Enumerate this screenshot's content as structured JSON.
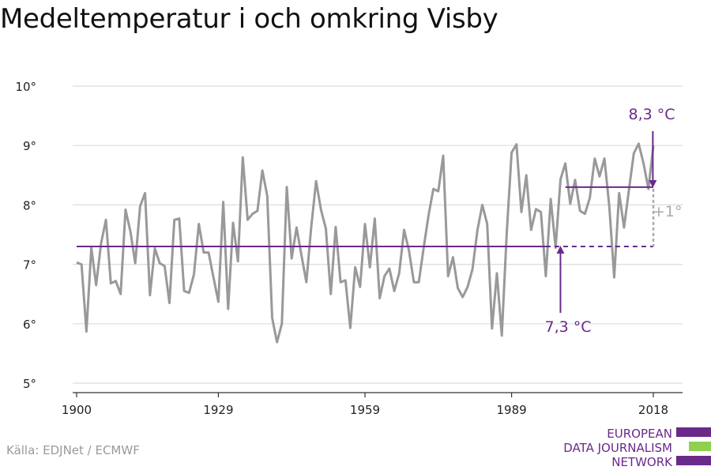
{
  "title": "Medeltemperatur i och omkring Visby",
  "source": "Källa: EDJNet / ECMWF",
  "logo": {
    "lines": [
      "EUROPEAN",
      "DATA JOURNALISM",
      "NETWORK"
    ],
    "colors": [
      "#6a2a8a",
      "#8fd14f",
      "#6a2a8a"
    ]
  },
  "colors": {
    "series": "#999999",
    "accent": "#6a2a8a",
    "increase": "#aaaaaa",
    "grid": "#dddddd",
    "axis": "#333333"
  },
  "chart_data": {
    "type": "line",
    "ylim": [
      5,
      10
    ],
    "xlim": [
      1900,
      2018
    ],
    "y_ticks": [
      5,
      6,
      7,
      8,
      9,
      10
    ],
    "y_tick_labels": [
      "5°",
      "6°",
      "7°",
      "8°",
      "9°",
      "10°"
    ],
    "x_ticks": [
      1900,
      1929,
      1959,
      1989,
      2018
    ],
    "x_tick_labels": [
      "1900",
      "1929",
      "1959",
      "1989",
      "2018"
    ],
    "grid": true,
    "series": [
      {
        "x": [
          1900,
          1901,
          1902,
          1903,
          1904,
          1905,
          1906,
          1907,
          1908,
          1909,
          1910,
          1911,
          1912,
          1913,
          1914,
          1915,
          1916,
          1917,
          1918,
          1919,
          1920,
          1921,
          1922,
          1923,
          1924,
          1925,
          1926,
          1927,
          1928,
          1929,
          1930,
          1931,
          1932,
          1933,
          1934,
          1935,
          1936,
          1937,
          1938,
          1939,
          1940,
          1941,
          1942,
          1943,
          1944,
          1945,
          1946,
          1947,
          1948,
          1949,
          1950,
          1951,
          1952,
          1953,
          1954,
          1955,
          1956,
          1957,
          1958,
          1959,
          1960,
          1961,
          1962,
          1963,
          1964,
          1965,
          1966,
          1967,
          1968,
          1969,
          1970,
          1971,
          1972,
          1973,
          1974,
          1975,
          1976,
          1977,
          1978,
          1979,
          1980,
          1981,
          1982,
          1983,
          1984,
          1985,
          1986,
          1987,
          1988,
          1989,
          1990,
          1991,
          1992,
          1993,
          1994,
          1995,
          1996,
          1997,
          1998,
          1999,
          2000,
          2001,
          2002,
          2003,
          2004,
          2005,
          2006,
          2007,
          2008,
          2009,
          2010,
          2011,
          2012,
          2013,
          2014,
          2015,
          2016,
          2017,
          2018
        ],
        "values": [
          7.03,
          7.0,
          5.87,
          7.28,
          6.65,
          7.35,
          7.75,
          6.68,
          6.72,
          6.5,
          7.92,
          7.55,
          7.02,
          7.98,
          8.2,
          6.48,
          7.27,
          7.02,
          6.97,
          6.35,
          7.75,
          7.77,
          6.55,
          6.52,
          6.83,
          7.68,
          7.2,
          7.2,
          6.78,
          6.37,
          8.05,
          6.25,
          7.7,
          7.05,
          8.8,
          7.75,
          7.85,
          7.9,
          8.58,
          8.15,
          6.1,
          5.69,
          6.0,
          8.3,
          7.1,
          7.62,
          7.15,
          6.7,
          7.62,
          8.4,
          7.92,
          7.6,
          6.5,
          7.63,
          6.7,
          6.73,
          5.93,
          6.95,
          6.62,
          7.68,
          6.95,
          7.77,
          6.43,
          6.8,
          6.93,
          6.55,
          6.85,
          7.58,
          7.23,
          6.7,
          6.7,
          7.27,
          7.82,
          8.27,
          8.23,
          8.83,
          6.8,
          7.12,
          6.6,
          6.45,
          6.62,
          6.92,
          7.57,
          8.0,
          7.68,
          5.92,
          6.85,
          5.8,
          7.52,
          8.88,
          9.02,
          7.88,
          8.5,
          7.58,
          7.93,
          7.88,
          6.8,
          8.1,
          7.28,
          8.43,
          8.7,
          8.02,
          8.42,
          7.9,
          7.85,
          8.12,
          8.78,
          8.48,
          8.78,
          7.97,
          6.78,
          8.2,
          7.62,
          8.25,
          8.87,
          9.03,
          8.7,
          8.27,
          9.0
        ]
      }
    ],
    "annotations": {
      "baseline_value": 7.3,
      "baseline_label": "7,3 °C",
      "recent_value": 8.3,
      "recent_label": "8,3 °C",
      "increase_label": "+1°",
      "baseline_solid_end_x": 1996,
      "recent_start_x": 2000,
      "end_x": 2018
    }
  }
}
